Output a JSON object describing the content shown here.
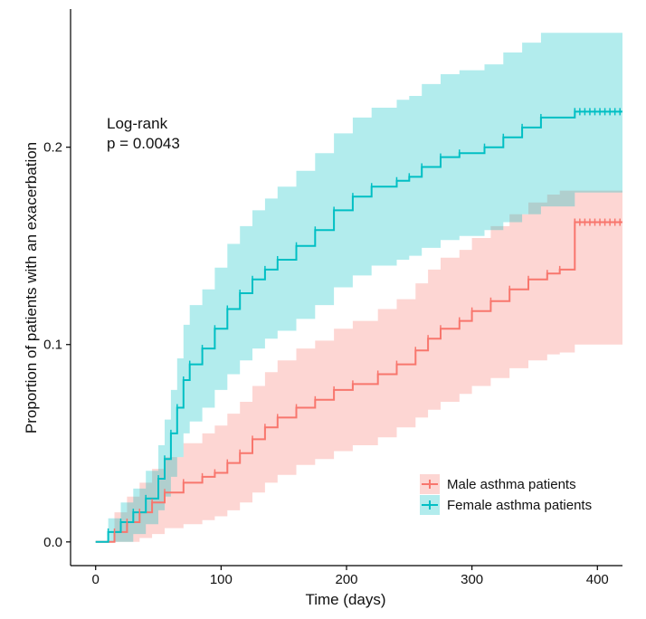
{
  "chart_data": {
    "type": "line",
    "subtype": "kaplan-meier cumulative incidence with confidence bands",
    "xlabel": "Time (days)",
    "ylabel": "Proportion of patients with an exacerbation",
    "xlim": [
      -20,
      420
    ],
    "ylim": [
      -0.012,
      0.27
    ],
    "xticks": [
      0,
      100,
      200,
      300,
      400
    ],
    "xtick_labels": [
      "0",
      "100",
      "200",
      "300",
      "400"
    ],
    "yticks": [
      0.0,
      0.1,
      0.2
    ],
    "ytick_labels": [
      "0.0",
      "0.1",
      "0.2"
    ],
    "grid": false,
    "legend_position": "bottom-right",
    "annotation": {
      "line1": "Log-rank",
      "line2": "p = 0.0043"
    },
    "series": [
      {
        "name": "Male asthma patients",
        "color": "#F8766D",
        "band_color": "#F8766D",
        "x": [
          0,
          15,
          25,
          35,
          45,
          55,
          70,
          85,
          95,
          105,
          115,
          125,
          135,
          145,
          160,
          175,
          190,
          205,
          225,
          240,
          255,
          265,
          275,
          290,
          300,
          315,
          330,
          345,
          360,
          370,
          382,
          420
        ],
        "y": [
          0.0,
          0.005,
          0.01,
          0.015,
          0.02,
          0.025,
          0.03,
          0.033,
          0.035,
          0.04,
          0.045,
          0.052,
          0.058,
          0.063,
          0.068,
          0.072,
          0.077,
          0.08,
          0.085,
          0.09,
          0.097,
          0.103,
          0.108,
          0.112,
          0.117,
          0.122,
          0.128,
          0.133,
          0.136,
          0.138,
          0.162,
          0.162
        ],
        "lower": [
          0.0,
          0.0,
          0.0,
          0.002,
          0.004,
          0.007,
          0.009,
          0.011,
          0.013,
          0.016,
          0.02,
          0.025,
          0.03,
          0.034,
          0.039,
          0.042,
          0.046,
          0.049,
          0.053,
          0.058,
          0.063,
          0.067,
          0.071,
          0.075,
          0.079,
          0.083,
          0.088,
          0.092,
          0.095,
          0.096,
          0.1,
          0.1
        ],
        "upper": [
          0.0,
          0.015,
          0.023,
          0.03,
          0.037,
          0.043,
          0.05,
          0.055,
          0.059,
          0.065,
          0.071,
          0.079,
          0.086,
          0.092,
          0.098,
          0.102,
          0.108,
          0.112,
          0.118,
          0.123,
          0.131,
          0.138,
          0.144,
          0.148,
          0.154,
          0.16,
          0.166,
          0.172,
          0.176,
          0.178,
          0.178,
          0.178
        ]
      },
      {
        "name": "Female asthma patients",
        "color": "#00BFC4",
        "band_color": "#00BFC4",
        "x": [
          0,
          10,
          20,
          30,
          40,
          50,
          55,
          60,
          65,
          70,
          75,
          85,
          95,
          105,
          115,
          125,
          135,
          145,
          160,
          175,
          190,
          205,
          220,
          240,
          250,
          260,
          275,
          290,
          310,
          325,
          340,
          355,
          382,
          420
        ],
        "y": [
          0.0,
          0.005,
          0.01,
          0.015,
          0.022,
          0.032,
          0.042,
          0.055,
          0.068,
          0.082,
          0.09,
          0.098,
          0.108,
          0.118,
          0.126,
          0.133,
          0.138,
          0.143,
          0.15,
          0.158,
          0.168,
          0.175,
          0.18,
          0.183,
          0.185,
          0.19,
          0.195,
          0.197,
          0.2,
          0.205,
          0.21,
          0.215,
          0.218,
          0.218
        ],
        "lower": [
          0.0,
          0.0,
          0.0,
          0.004,
          0.009,
          0.016,
          0.023,
          0.033,
          0.043,
          0.055,
          0.061,
          0.068,
          0.077,
          0.085,
          0.092,
          0.098,
          0.103,
          0.107,
          0.113,
          0.12,
          0.129,
          0.135,
          0.14,
          0.143,
          0.145,
          0.149,
          0.153,
          0.155,
          0.158,
          0.162,
          0.166,
          0.17,
          0.177,
          0.177
        ],
        "upper": [
          0.0,
          0.012,
          0.02,
          0.027,
          0.036,
          0.049,
          0.062,
          0.077,
          0.093,
          0.11,
          0.12,
          0.128,
          0.139,
          0.151,
          0.16,
          0.168,
          0.174,
          0.18,
          0.188,
          0.197,
          0.207,
          0.215,
          0.22,
          0.224,
          0.226,
          0.232,
          0.237,
          0.239,
          0.242,
          0.248,
          0.253,
          0.258,
          0.258,
          0.258
        ]
      }
    ]
  }
}
